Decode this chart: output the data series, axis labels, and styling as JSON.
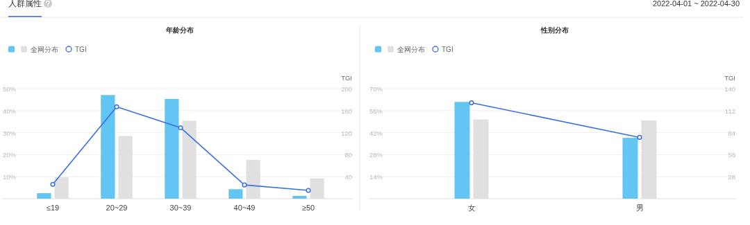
{
  "chart_data": [
    {
      "type": "bar",
      "title": "年龄分布",
      "annotations": [
        "人群属性",
        "2022-04-01 ~ 2022-04-30"
      ],
      "categories": [
        "≤19",
        "20~29",
        "30~39",
        "40~49",
        "≥50"
      ],
      "series": [
        {
          "color": "#63c5f3",
          "values": [
            2.5,
            47.1,
            45.3,
            4.3,
            1.3
          ]
        },
        {
          "name": "全网分布",
          "color": "#e0e0e0",
          "values": [
            9.7,
            28.5,
            35.4,
            17.6,
            9.2
          ]
        },
        {
          "name": "TGI",
          "type": "line",
          "axis": "y2",
          "color": "#3a6ee8",
          "marker": "circle",
          "values": [
            26,
            167,
            129,
            25,
            15
          ]
        }
      ],
      "ylim": [
        0,
        50
      ],
      "yticks": [
        {
          "value": 10,
          "label": "10%"
        },
        {
          "value": 20,
          "label": "20%"
        },
        {
          "value": 30,
          "label": "30%"
        },
        {
          "value": 40,
          "label": "40%"
        },
        {
          "value": 50,
          "label": "50%"
        }
      ],
      "y2lim": [
        0,
        200
      ],
      "y2ticks": [
        40,
        80,
        120,
        160,
        200
      ],
      "y2label": "TGI",
      "grid": "y",
      "legend": "top left"
    },
    {
      "type": "bar",
      "title": "性别分布",
      "categories": [
        "女",
        "男"
      ],
      "series": [
        {
          "color": "#63c5f3",
          "values": [
            61.5,
            38.7
          ]
        },
        {
          "name": "全网分布",
          "color": "#e0e0e0",
          "values": [
            50.4,
            49.8
          ]
        },
        {
          "name": "TGI",
          "type": "line",
          "axis": "y2",
          "color": "#3a6ee8",
          "marker": "circle",
          "values": [
            122,
            78
          ]
        }
      ],
      "ylim": [
        0,
        70
      ],
      "yticks": [
        {
          "value": 14,
          "label": "14%"
        },
        {
          "value": 28,
          "label": "28%"
        },
        {
          "value": 42,
          "label": "42%"
        },
        {
          "value": 56,
          "label": "56%"
        },
        {
          "value": 70,
          "label": "70%"
        }
      ],
      "y2lim": [
        0,
        140
      ],
      "y2ticks": [
        28,
        56,
        84,
        112,
        140
      ],
      "y2label": "TGI",
      "grid": "y",
      "legend": "top left"
    }
  ]
}
